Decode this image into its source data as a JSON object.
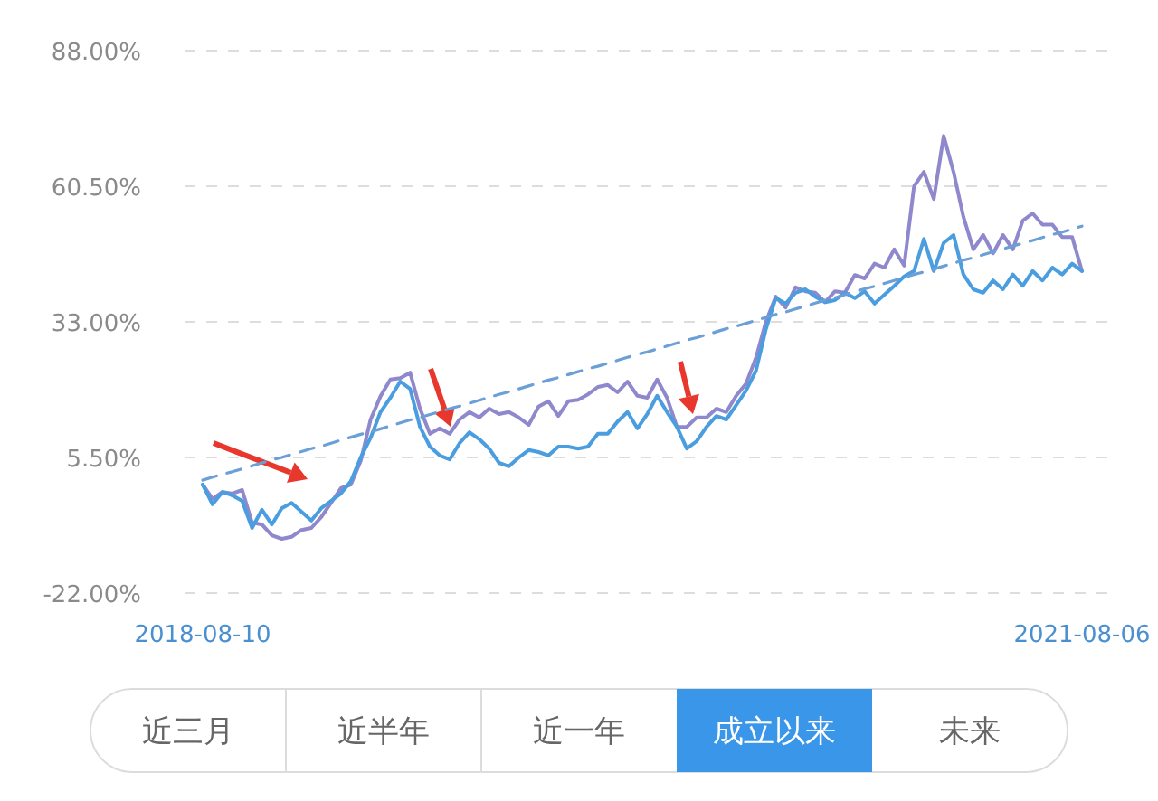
{
  "chart_data": {
    "type": "line",
    "categories": [
      "2018-08-10",
      null,
      null,
      null,
      null,
      null,
      null,
      null,
      null,
      null,
      null,
      null,
      null,
      null,
      null,
      null,
      null,
      null,
      null,
      null,
      null,
      null,
      null,
      null,
      null,
      null,
      null,
      null,
      null,
      null,
      null,
      null,
      null,
      null,
      null,
      null,
      null,
      null,
      null,
      null,
      null,
      null,
      null,
      null,
      null,
      null,
      null,
      null,
      null,
      null,
      null,
      null,
      null,
      null,
      null,
      null,
      null,
      null,
      null,
      null,
      null,
      null,
      null,
      null,
      null,
      null,
      null,
      null,
      null,
      null,
      null,
      null,
      null,
      null,
      null,
      null,
      null,
      null,
      null,
      null,
      null,
      null,
      null,
      null,
      null,
      null,
      null,
      null,
      null,
      "2021-08-06"
    ],
    "series": [
      {
        "color": "#8f88cc",
        "values": [
          0.0,
          -2.9,
          -1.5,
          -1.8,
          -1.1,
          -7.7,
          -8.1,
          -10.3,
          -11.0,
          -10.6,
          -9.2,
          -8.8,
          -6.6,
          -3.7,
          -0.7,
          0.0,
          4.8,
          13.2,
          17.9,
          21.3,
          21.6,
          22.7,
          15.4,
          10.3,
          11.4,
          10.3,
          13.2,
          14.7,
          13.6,
          15.4,
          14.3,
          14.7,
          13.6,
          12.1,
          15.8,
          16.9,
          13.9,
          16.9,
          17.2,
          18.3,
          19.8,
          20.2,
          18.7,
          20.9,
          18.0,
          17.6,
          21.3,
          17.6,
          11.7,
          11.7,
          13.6,
          13.6,
          15.4,
          14.7,
          18.0,
          20.5,
          25.7,
          33.0,
          38.1,
          35.9,
          40.0,
          39.2,
          38.9,
          37.0,
          39.2,
          38.9,
          42.5,
          41.8,
          44.8,
          44.0,
          47.7,
          44.4,
          60.5,
          63.4,
          57.9,
          70.7,
          63.4,
          54.3,
          47.7,
          50.6,
          46.9,
          50.6,
          47.7,
          53.5,
          55.0,
          52.7,
          52.7,
          50.2,
          50.2,
          43.3
        ]
      },
      {
        "color": "#4a9ee0",
        "values": [
          0.0,
          -4.0,
          -1.5,
          -2.2,
          -3.3,
          -8.8,
          -5.1,
          -8.1,
          -4.8,
          -3.7,
          -5.5,
          -7.3,
          -4.8,
          -3.3,
          -1.8,
          0.7,
          5.5,
          9.5,
          14.7,
          17.6,
          20.9,
          19.4,
          11.7,
          7.7,
          5.9,
          5.1,
          8.4,
          10.6,
          9.2,
          7.3,
          4.4,
          3.7,
          5.5,
          7.0,
          6.6,
          5.9,
          7.7,
          7.7,
          7.3,
          7.7,
          10.3,
          10.3,
          12.8,
          14.7,
          11.4,
          14.3,
          18.0,
          14.7,
          11.7,
          7.3,
          8.8,
          11.7,
          13.9,
          13.2,
          16.1,
          19.1,
          23.1,
          31.5,
          37.8,
          36.7,
          38.9,
          39.6,
          38.1,
          37.0,
          37.4,
          38.9,
          37.8,
          39.2,
          36.7,
          38.5,
          40.3,
          42.2,
          43.3,
          49.8,
          43.3,
          49.0,
          50.6,
          42.6,
          39.6,
          38.9,
          41.4,
          39.6,
          42.6,
          40.3,
          43.3,
          41.4,
          44.0,
          42.6,
          44.8,
          43.3
        ]
      },
      {
        "color": "#6a9fd8",
        "line_style": "dashed",
        "values": [
          0.9,
          1.5,
          2.1,
          2.6,
          3.2,
          3.8,
          4.4,
          5.0,
          5.5,
          6.1,
          6.7,
          7.3,
          7.8,
          8.4,
          9.0,
          9.6,
          10.2,
          10.7,
          11.3,
          11.9,
          12.5,
          13.1,
          13.6,
          14.2,
          14.8,
          15.4,
          15.9,
          16.5,
          17.1,
          17.7,
          18.3,
          18.8,
          19.4,
          20.0,
          20.6,
          21.2,
          21.7,
          22.3,
          22.9,
          23.5,
          24.0,
          24.6,
          25.2,
          25.8,
          26.4,
          26.9,
          27.5,
          28.1,
          28.7,
          29.3,
          29.8,
          30.4,
          31.0,
          31.6,
          32.1,
          32.7,
          33.3,
          33.9,
          34.5,
          35.0,
          35.6,
          36.2,
          36.8,
          37.4,
          37.9,
          38.5,
          39.1,
          39.7,
          40.2,
          40.8,
          41.4,
          42.0,
          42.6,
          43.1,
          43.7,
          44.3,
          44.9,
          45.5,
          46.0,
          46.6,
          47.2,
          47.8,
          48.4,
          48.9,
          49.5,
          50.1,
          50.7,
          51.2,
          51.8,
          52.4
        ]
      }
    ],
    "ylim": [
      -22,
      88
    ],
    "yticks": [
      {
        "value": 88,
        "label": "88.00%"
      },
      {
        "value": 60.5,
        "label": "60.50%"
      },
      {
        "value": 33,
        "label": "33.00%"
      },
      {
        "value": 5.5,
        "label": "5.50%"
      },
      {
        "value": -22,
        "label": "-22.00%"
      }
    ],
    "grid": "y",
    "marker": "none",
    "annotations": [
      "近三月",
      "近半年",
      "近一年",
      "成立以来",
      "未来"
    ]
  }
}
